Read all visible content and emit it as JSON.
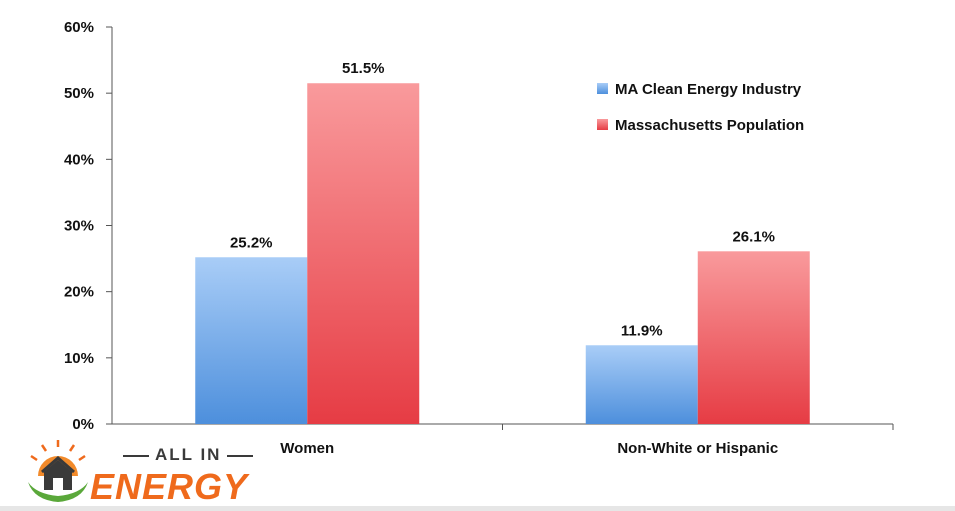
{
  "chart_data": {
    "type": "bar",
    "categories": [
      "Women",
      "Non-White or Hispanic"
    ],
    "series": [
      {
        "name": "MA Clean Energy Industry",
        "values": [
          25.2,
          11.9
        ],
        "labels": [
          "25.2%",
          "11.9%"
        ],
        "color": "#7fb3ee"
      },
      {
        "name": "Massachusetts Population",
        "values": [
          51.5,
          26.1
        ],
        "labels": [
          "51.5%",
          "26.1%"
        ],
        "color": "#f0757a"
      }
    ],
    "ylim": [
      0,
      60
    ],
    "yticks": [
      {
        "value": 0,
        "label": "0%"
      },
      {
        "value": 10,
        "label": "10%"
      },
      {
        "value": 20,
        "label": "20%"
      },
      {
        "value": 30,
        "label": "30%"
      },
      {
        "value": 40,
        "label": "40%"
      },
      {
        "value": 50,
        "label": "50%"
      },
      {
        "value": 60,
        "label": "60%"
      }
    ],
    "grid": false,
    "legend_position": "top-right",
    "title": "",
    "xlabel": "",
    "ylabel": ""
  },
  "logo": {
    "line1": "ALL IN",
    "line2": "ENERGY"
  }
}
